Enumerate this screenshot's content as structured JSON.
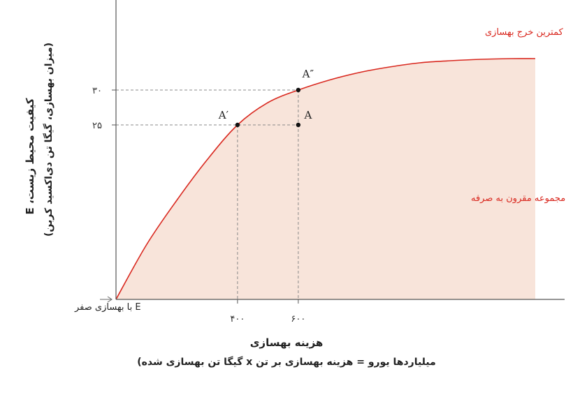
{
  "chart_data": {
    "type": "area",
    "title": "",
    "xlabel": "هزینه بهسازی",
    "xlabel_sub": "میلیاردها یورو = هزینه بهسازی بر تن x گیگا تن بهسازی شده)",
    "ylabel": "کیفیت محیط زیست، E",
    "ylabel_sub": "(میزان بهسازی، گیگا تن دی‌اکسید کربن)",
    "xlim": [
      0,
      1380
    ],
    "ylim": [
      0,
      42.9
    ],
    "x_ticks": [
      {
        "value": 400,
        "label": "۴۰۰"
      },
      {
        "value": 600,
        "label": "۶۰۰"
      }
    ],
    "y_ticks": [
      {
        "value": 25,
        "label": "۲۵"
      },
      {
        "value": 30,
        "label": "۳۰"
      }
    ],
    "curve": {
      "name": "منحنی کمترین خرج بهسازی",
      "x": [
        0,
        100,
        200,
        300,
        400,
        500,
        600,
        700,
        800,
        900,
        1000,
        1100,
        1200,
        1300,
        1380
      ],
      "y": [
        0,
        7.8,
        14.2,
        20.0,
        25.0,
        28.2,
        30.0,
        31.4,
        32.5,
        33.3,
        33.9,
        34.2,
        34.4,
        34.5,
        34.5
      ]
    },
    "region_label": "مجموعه مقرون به صرفه",
    "points": [
      {
        "label": "A′",
        "x": 400,
        "y": 25
      },
      {
        "label": "A″",
        "x": 600,
        "y": 30
      },
      {
        "label": "A",
        "x": 600,
        "y": 25
      }
    ],
    "zero_label": "E با بهسازی صفر",
    "colors": {
      "curve": "#d9281f",
      "fill": "#f8e4da",
      "axis": "#555555",
      "guide": "#888888",
      "point": "#111111",
      "red_text": "#d9281f"
    }
  }
}
